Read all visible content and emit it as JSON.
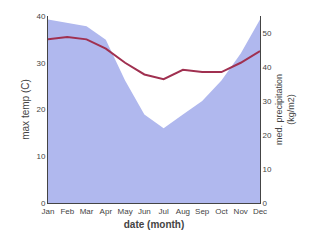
{
  "chart_data": {
    "type": "line",
    "xlabel": "date (month)",
    "ylabel": "max temp (C)",
    "y2label": "med. precipitation\n(kg/m2)",
    "categories": [
      "Jan",
      "Feb",
      "Mar",
      "Apr",
      "May",
      "Jun",
      "Jul",
      "Aug",
      "Sep",
      "Oct",
      "Nov",
      "Dec"
    ],
    "series": [
      {
        "type": "area",
        "axis": "y2",
        "color": "#b0b8ee",
        "values": [
          54,
          53,
          52,
          48,
          36,
          26,
          22,
          26,
          30,
          36,
          44,
          54
        ]
      },
      {
        "type": "line",
        "color": "#a03050",
        "values": [
          35.0,
          35.5,
          35.0,
          33.0,
          30.0,
          27.5,
          26.5,
          28.5,
          28.0,
          28.0,
          30.0,
          32.5
        ]
      }
    ],
    "ylim": [
      0,
      40
    ],
    "yticks": [
      0,
      10,
      20,
      30,
      40
    ],
    "y2lim": [
      0,
      55
    ],
    "y2ticks": [
      0,
      10,
      20,
      30,
      40,
      50
    ],
    "grid": false
  }
}
